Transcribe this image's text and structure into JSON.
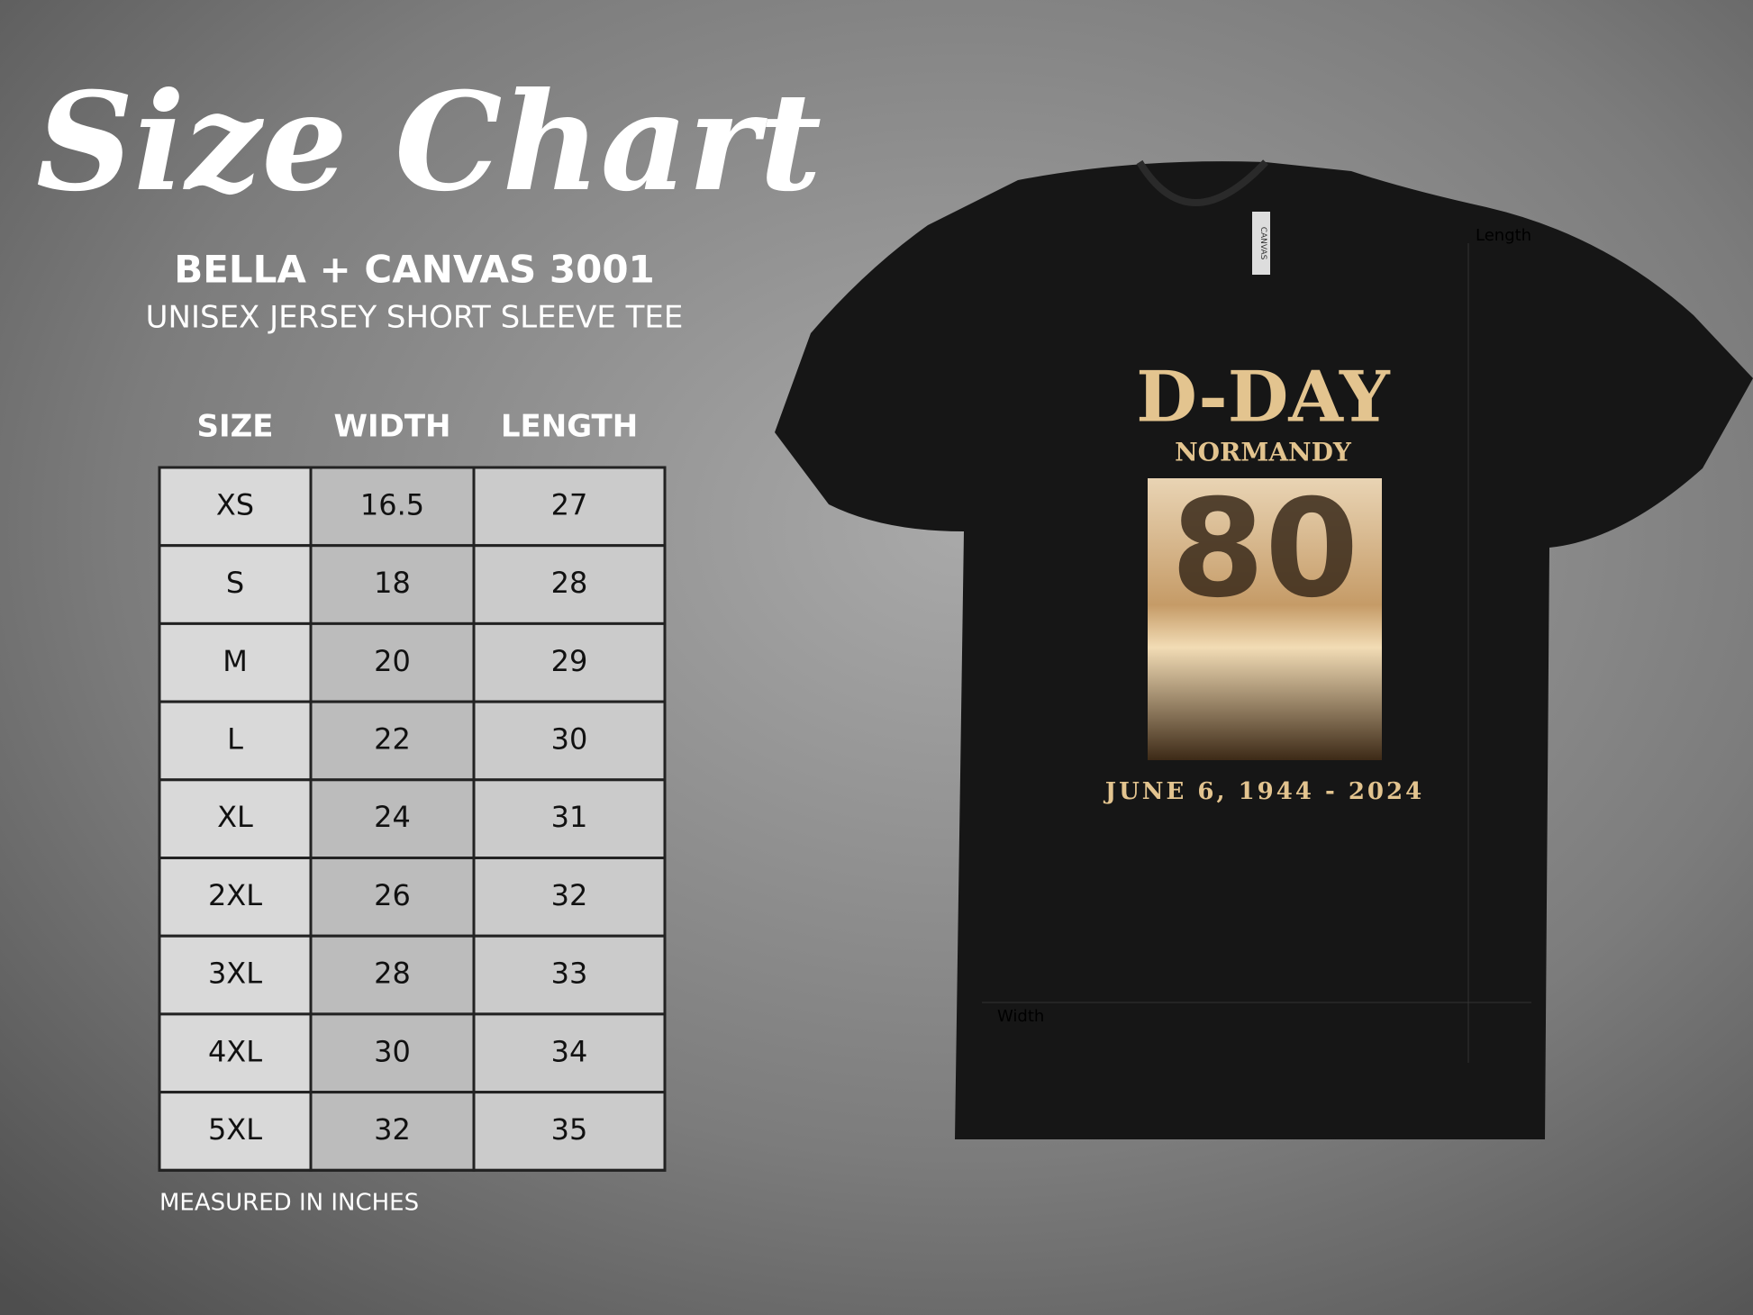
{
  "header": {
    "title": "Size Chart",
    "brand": "BELLA + CANVAS 3001",
    "subtitle": "UNISEX JERSEY SHORT SLEEVE TEE"
  },
  "table": {
    "headers": [
      "SIZE",
      "WIDTH",
      "LENGTH"
    ],
    "rows": [
      [
        "XS",
        16.5,
        27
      ],
      [
        "S",
        18,
        28
      ],
      [
        "M",
        20,
        29
      ],
      [
        "L",
        22,
        30
      ],
      [
        "XL",
        24,
        31
      ],
      [
        "2XL",
        26,
        32
      ],
      [
        "3XL",
        28,
        33
      ],
      [
        "4XL",
        30,
        34
      ],
      [
        "5XL",
        32,
        35
      ]
    ]
  },
  "note": "MEASURED IN INCHES",
  "shirt": {
    "tag": "CANVAS",
    "print_title": "D-DAY",
    "print_place": "NORMANDY",
    "print_number": "80",
    "print_date": "JUNE 6, 1944 - 2024",
    "length_label": "Length",
    "width_label": "Width"
  }
}
